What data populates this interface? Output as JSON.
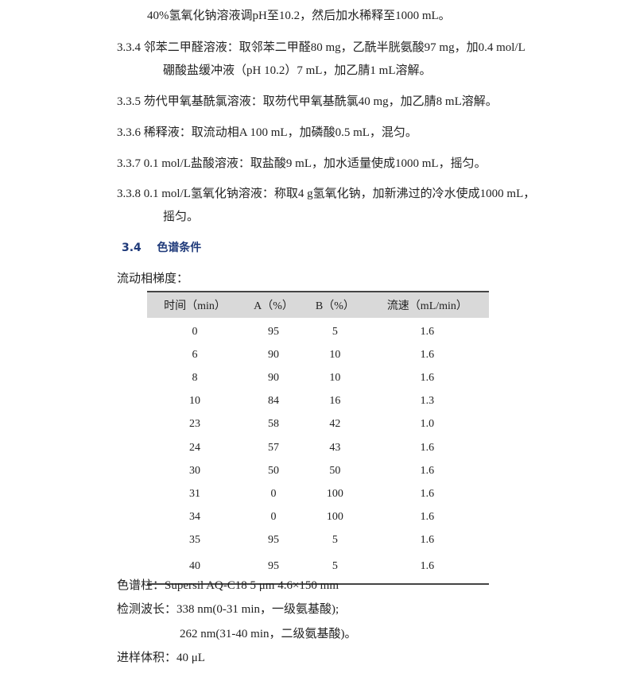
{
  "paragraphs": {
    "p0": "40%氢氧化钠溶液调pH至10.2，然后加水稀释至1000 mL。",
    "p334a": "3.3.4  邻苯二甲醛溶液：取邻苯二甲醛80 mg，乙酰半胱氨酸97 mg，加0.4 mol/L",
    "p334b": "硼酸盐缓冲液（pH 10.2）7 mL，加乙腈1 mL溶解。",
    "p335": "3.3.5  芴代甲氧基酰氯溶液：取芴代甲氧基酰氯40 mg，加乙腈8 mL溶解。",
    "p336": "3.3.6  稀释液：取流动相A 100 mL，加磷酸0.5 mL，混匀。",
    "p337": "3.3.7 0.1 mol/L盐酸溶液：取盐酸9 mL，加水适量使成1000 mL，摇匀。",
    "p338a": "3.3.8 0.1 mol/L氢氧化钠溶液：称取4 g氢氧化钠，加新沸过的冷水使成1000 mL，",
    "p338b": "摇匀。"
  },
  "section": {
    "number": "3.4",
    "title": "色谱条件"
  },
  "gradient_label": "流动相梯度：",
  "table": {
    "headers": [
      "时间（min）",
      "A（%）",
      "B（%）",
      "流速（mL/min）"
    ],
    "rows": [
      [
        "0",
        "95",
        "5",
        "1.6"
      ],
      [
        "6",
        "90",
        "10",
        "1.6"
      ],
      [
        "8",
        "90",
        "10",
        "1.6"
      ],
      [
        "10",
        "84",
        "16",
        "1.3"
      ],
      [
        "23",
        "58",
        "42",
        "1.0"
      ],
      [
        "24",
        "57",
        "43",
        "1.6"
      ],
      [
        "30",
        "50",
        "50",
        "1.6"
      ],
      [
        "31",
        "0",
        "100",
        "1.6"
      ],
      [
        "34",
        "0",
        "100",
        "1.6"
      ],
      [
        "35",
        "95",
        "5",
        "1.6"
      ],
      [
        "40",
        "95",
        "5",
        "1.6"
      ]
    ]
  },
  "conditions": {
    "column": "色谱柱：Supersil AQ-C18 5 μm 4.6×150 mm",
    "wavelength1": "检测波长：338 nm(0-31 min，一级氨基酸);",
    "wavelength2": "262 nm(31-40 min，二级氨基酸)。",
    "injection": "进样体积：40 μL"
  }
}
